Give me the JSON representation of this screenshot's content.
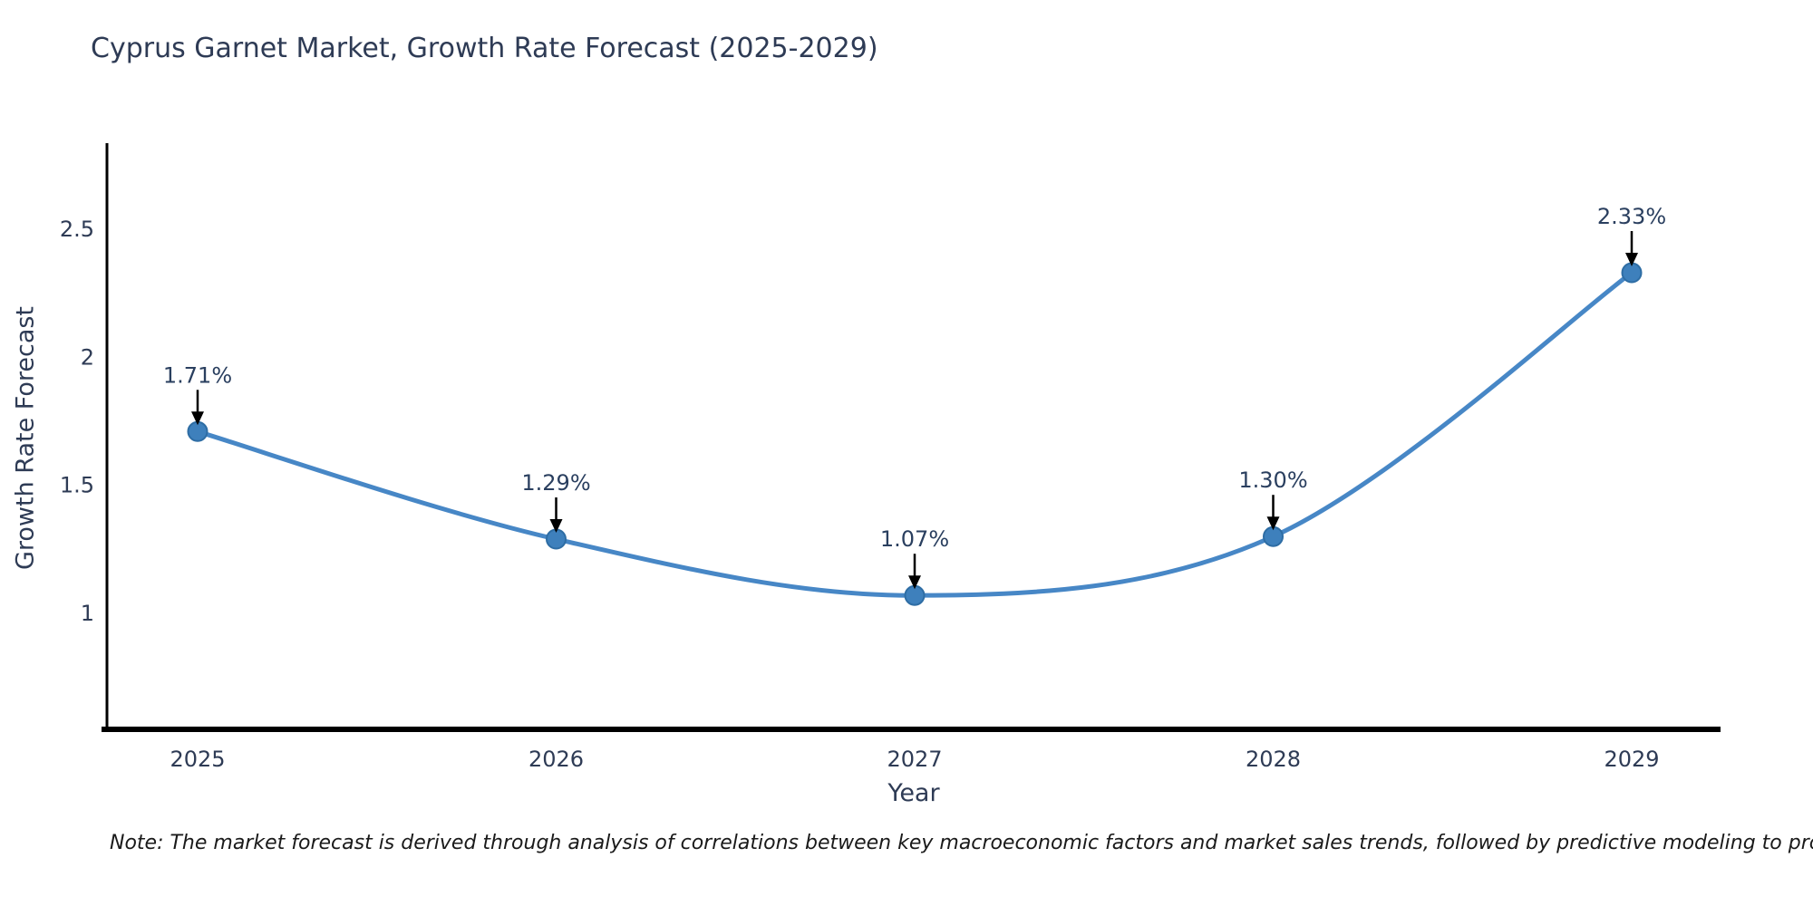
{
  "title": "Cyprus Garnet Market, Growth Rate Forecast (2025-2029)",
  "note": "Note: The market forecast is derived through analysis of correlations between key macroeconomic factors and market sales trends, followed by predictive modeling to project future sales",
  "chart_data": {
    "type": "line",
    "title": "Cyprus Garnet Market, Growth Rate Forecast (2025-2029)",
    "xlabel": "Year",
    "ylabel": "Growth Rate Forecast",
    "x": [
      2025,
      2026,
      2027,
      2028,
      2029
    ],
    "values": [
      1.71,
      1.29,
      1.07,
      1.3,
      2.33
    ],
    "point_labels": [
      "1.71%",
      "1.29%",
      "1.07%",
      "1.30%",
      "2.33%"
    ],
    "xtick_labels": [
      "2025",
      "2026",
      "2027",
      "2028",
      "2029"
    ],
    "ytick_values": [
      1,
      1.5,
      2,
      2.5
    ],
    "ytick_labels": [
      "1",
      "1.5",
      "2",
      "2.5"
    ],
    "ylim": [
      0.54,
      2.83
    ],
    "line_shape": "spline",
    "grid": false,
    "legend_position": "none",
    "colors": {
      "line": "#4787c6",
      "marker_fill": "#3e80bc",
      "marker_edge": "#2e6da4",
      "axis_line": "#000000",
      "tick_text": "#2e3b55",
      "annotation_text": "#2a3f5f",
      "annotation_arrow": "#000000"
    }
  }
}
